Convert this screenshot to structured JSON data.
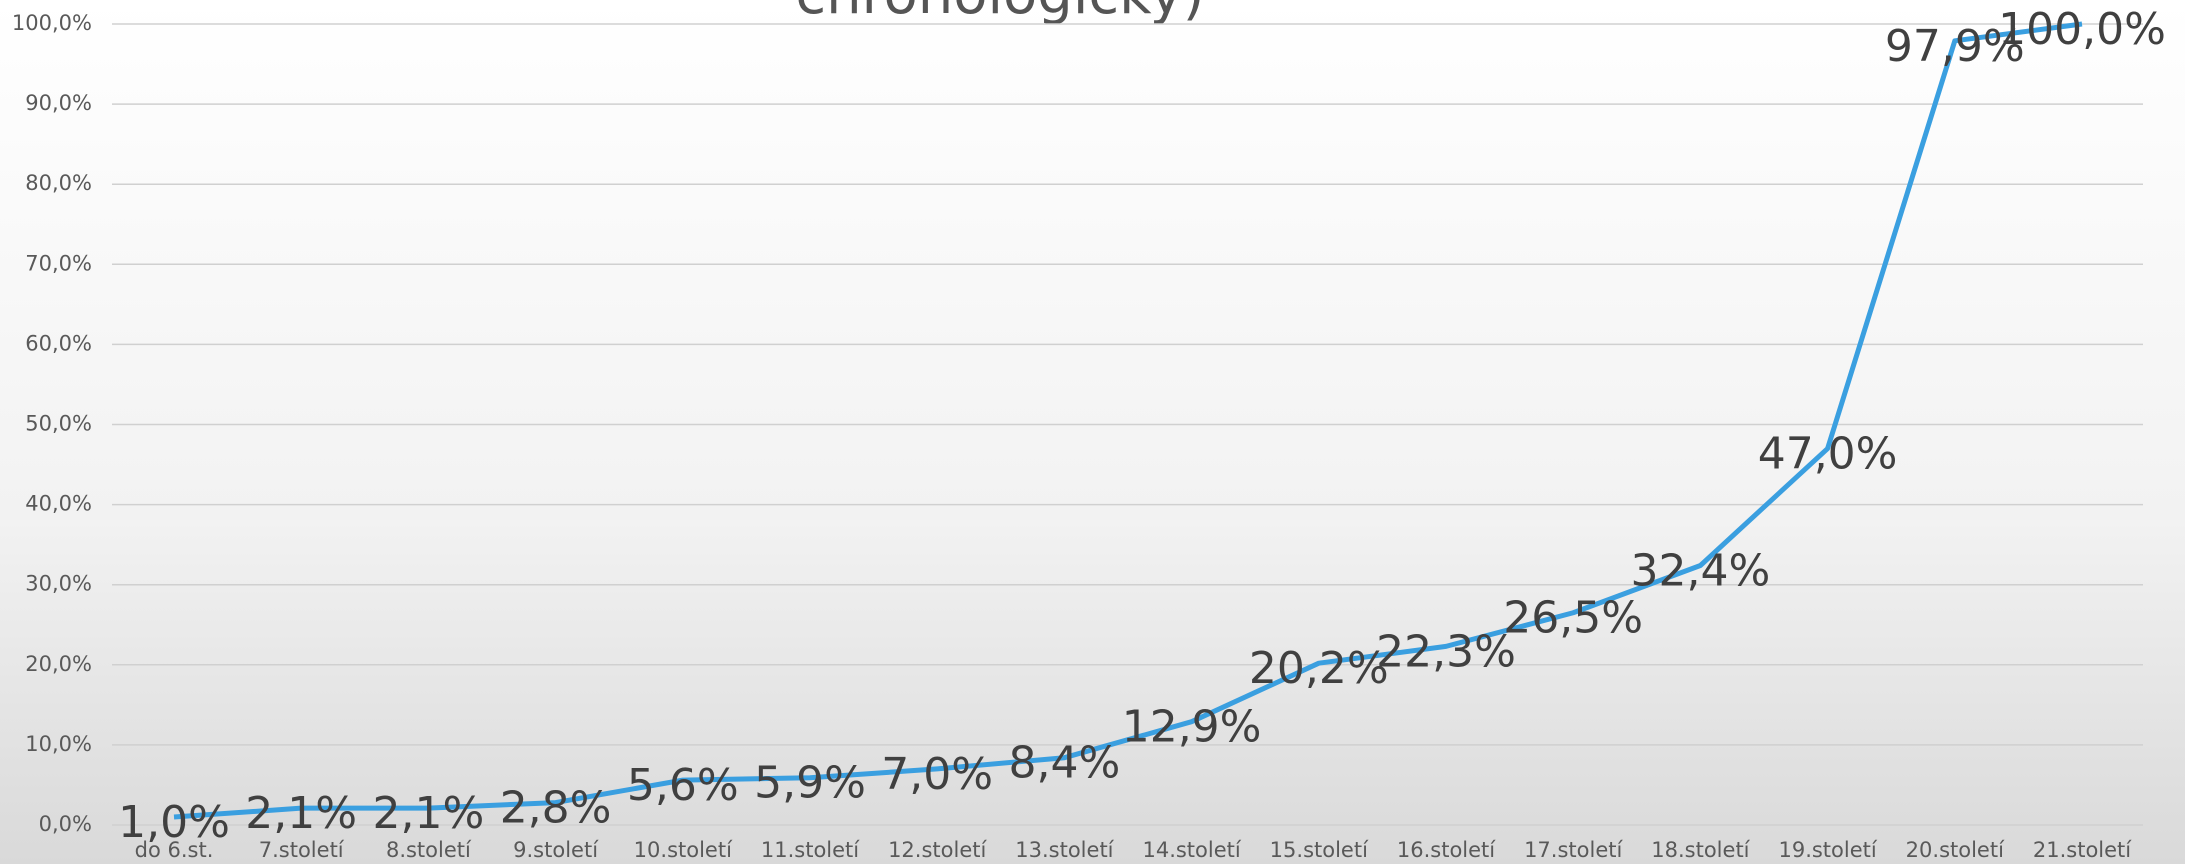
{
  "chart_data": {
    "type": "line",
    "title": "chronologicky)",
    "categories": [
      "do 6.st.",
      "7.století",
      "8.století",
      "9.století",
      "10.století",
      "11.století",
      "12.století",
      "13.století",
      "14.století",
      "15.století",
      "16.století",
      "17.století",
      "18.století",
      "19.století",
      "20.století",
      "21.století"
    ],
    "series": [
      {
        "name": "chronologicky",
        "color": "#3a9fe0",
        "values": [
          1.0,
          2.1,
          2.1,
          2.8,
          5.6,
          5.9,
          7.0,
          8.4,
          12.9,
          20.2,
          22.3,
          26.5,
          32.4,
          47.0,
          97.9,
          100.0
        ],
        "value_labels": [
          "1,0%",
          "2,1%",
          "2,1%",
          "2,8%",
          "5,6%",
          "5,9%",
          "7,0%",
          "8,4%",
          "12,9%",
          "20,2%",
          "22,3%",
          "26,5%",
          "32,4%",
          "47,0%",
          "97,9%",
          "100,0%"
        ]
      }
    ],
    "ylim": [
      0,
      100
    ],
    "yticks": [
      {
        "value": 0,
        "label": "0,0%"
      },
      {
        "value": 10,
        "label": "10,0%"
      },
      {
        "value": 20,
        "label": "20,0%"
      },
      {
        "value": 30,
        "label": "30,0%"
      },
      {
        "value": 40,
        "label": "40,0%"
      },
      {
        "value": 50,
        "label": "50,0%"
      },
      {
        "value": 60,
        "label": "60,0%"
      },
      {
        "value": 70,
        "label": "70,0%"
      },
      {
        "value": 80,
        "label": "80,0%"
      },
      {
        "value": 90,
        "label": "90,0%"
      },
      {
        "value": 100,
        "label": "100,0%"
      }
    ],
    "grid": true
  }
}
